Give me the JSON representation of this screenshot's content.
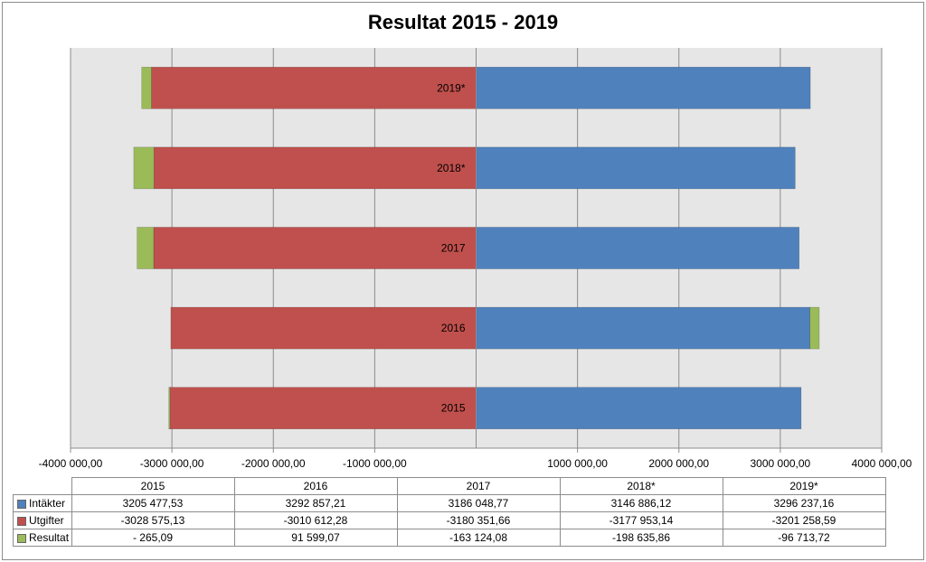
{
  "chart_data": {
    "type": "bar",
    "orientation": "horizontal",
    "stacked": true,
    "title": "Resultat 2015 - 2019",
    "categories": [
      "2015",
      "2016",
      "2017",
      "2018*",
      "2019*"
    ],
    "series": [
      {
        "name": "Intäkter",
        "color": "#4f81bd",
        "values": [
          3205477.53,
          3292857.21,
          3186048.77,
          3146886.12,
          3296237.16
        ],
        "labels": [
          "3205 477,53",
          "3292 857,21",
          "3186 048,77",
          "3146 886,12",
          "3296 237,16"
        ]
      },
      {
        "name": "Utgifter",
        "color": "#c0504d",
        "values": [
          -3028575.13,
          -3010612.28,
          -3180351.66,
          -3177953.14,
          -3201258.59
        ],
        "labels": [
          "-3028 575,13",
          "-3010 612,28",
          "-3180 351,66",
          "-3177 953,14",
          "-3201 258,59"
        ]
      },
      {
        "name": "Resultat",
        "color": "#9bbb59",
        "values": [
          -265.09,
          91599.07,
          -163124.08,
          -198635.86,
          -96713.72
        ],
        "labels": [
          "- 265,09",
          "91 599,07",
          "-163 124,08",
          "-198 635,86",
          "-96 713,72"
        ]
      }
    ],
    "xlim": [
      -4000000,
      4000000
    ],
    "xticks": [
      {
        "value": -4000000,
        "label": "-4000 000,00"
      },
      {
        "value": -3000000,
        "label": "-3000 000,00"
      },
      {
        "value": -2000000,
        "label": "-2000 000,00"
      },
      {
        "value": -1000000,
        "label": "-1000 000,00"
      },
      {
        "value": 1000000,
        "label": "1000 000,00"
      },
      {
        "value": 2000000,
        "label": "2000 000,00"
      },
      {
        "value": 3000000,
        "label": "3000 000,00"
      },
      {
        "value": 4000000,
        "label": "4000 000,00"
      }
    ],
    "grid": true,
    "legend": "data-table"
  }
}
